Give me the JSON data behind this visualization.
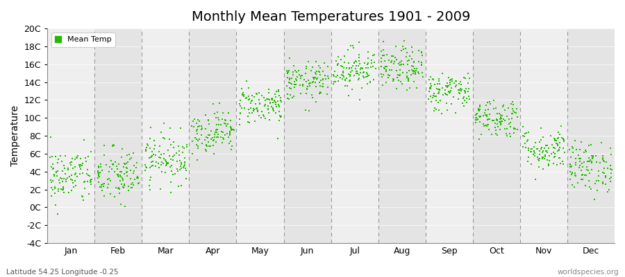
{
  "title": "Monthly Mean Temperatures 1901 - 2009",
  "ylabel": "Temperature",
  "footer_left": "Latitude 54.25 Longitude -0.25",
  "footer_right": "worldspecies.org",
  "legend_label": "Mean Temp",
  "dot_color": "#22BB00",
  "bg_color_even": "#EFEFEF",
  "bg_color_odd": "#E4E4E4",
  "ylim": [
    -4,
    20
  ],
  "yticks": [
    -4,
    -2,
    0,
    2,
    4,
    6,
    8,
    10,
    12,
    14,
    16,
    18,
    20
  ],
  "ytick_labels": [
    "-4C",
    "-2C",
    "0C",
    "2C",
    "4C",
    "6C",
    "8C",
    "10C",
    "12C",
    "14C",
    "16C",
    "18C",
    "20C"
  ],
  "months": [
    "Jan",
    "Feb",
    "Mar",
    "Apr",
    "May",
    "Jun",
    "Jul",
    "Aug",
    "Sep",
    "Oct",
    "Nov",
    "Dec"
  ],
  "xlim": [
    0,
    12
  ],
  "seed": 42,
  "n_years": 109,
  "mean_temps": [
    3.5,
    3.5,
    5.5,
    8.5,
    11.5,
    14.0,
    15.5,
    15.5,
    13.0,
    10.0,
    6.5,
    4.5
  ],
  "std_temps": [
    1.6,
    1.6,
    1.4,
    1.2,
    1.1,
    1.1,
    1.2,
    1.2,
    1.1,
    1.1,
    1.2,
    1.4
  ]
}
